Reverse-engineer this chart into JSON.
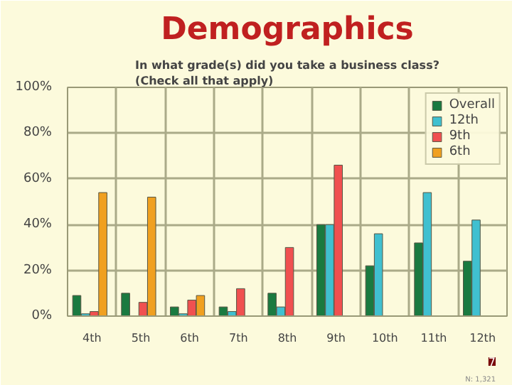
{
  "chart_data": {
    "type": "bar",
    "title": "Demographics",
    "subtitle": "In what grade(s) did you take a business class?\n(Check all that apply)",
    "categories": [
      "4th",
      "5th",
      "6th",
      "7th",
      "8th",
      "9th",
      "10th",
      "11th",
      "12th"
    ],
    "series": [
      {
        "name": "Overall",
        "color": "#1a7a40",
        "values": [
          9,
          10,
          4,
          4,
          10,
          40,
          22,
          32,
          24
        ]
      },
      {
        "name": "12th",
        "color": "#40c0d0",
        "values": [
          1,
          null,
          1,
          2,
          4,
          40,
          36,
          54,
          42
        ]
      },
      {
        "name": "9th",
        "color": "#f05050",
        "values": [
          2,
          6,
          7,
          12,
          30,
          66,
          null,
          null,
          null
        ]
      },
      {
        "name": "6th",
        "color": "#f0a020",
        "values": [
          54,
          52,
          9,
          null,
          null,
          null,
          null,
          null,
          null
        ]
      }
    ],
    "ylim": [
      0,
      100
    ],
    "yticks": [
      {
        "value": 0,
        "label": "0%"
      },
      {
        "value": 20,
        "label": "20%"
      },
      {
        "value": 40,
        "label": "40%"
      },
      {
        "value": 60,
        "label": "60%"
      },
      {
        "value": 80,
        "label": "80%"
      },
      {
        "value": 100,
        "label": "100%"
      }
    ],
    "grid": true,
    "legend": "top right",
    "annotations": [
      "N: 1,321",
      "7"
    ]
  }
}
